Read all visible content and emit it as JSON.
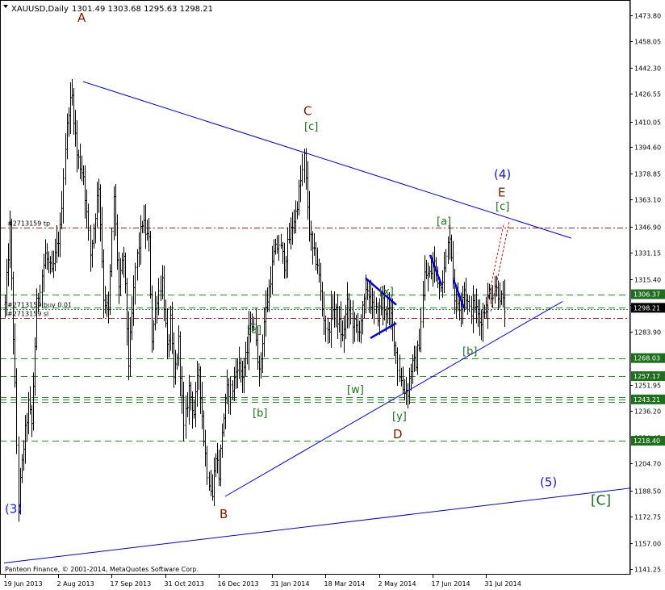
{
  "header": {
    "symbol": "XAUUSD,Daily",
    "ohlc": "1301.49 1303.68 1295.63 1298.21"
  },
  "copyright": "Panteon Finance, © 2001-2014, MetaQuotes Software Corp.",
  "colors": {
    "background": "#ffffff",
    "bars": "#000000",
    "trendline": "#0000cc",
    "wave_brown": "#7a1a00",
    "wave_green": "#1e6e1e",
    "wave_blue": "#1a1acc",
    "level_green": "#2e8b2e",
    "level_red": "#b22222",
    "tag_bg": "#1e6e1e",
    "price_tag_bg": "#000000"
  },
  "chart_data": {
    "type": "ohlc",
    "symbol": "XAUUSD",
    "timeframe": "Daily",
    "ylim": [
      1138,
      1483
    ],
    "y_ticks": [
      1473.8,
      1458.05,
      1442.3,
      1426.55,
      1410.05,
      1394.6,
      1378.85,
      1363.1,
      1346.9,
      1331.15,
      1315.4,
      1299.65,
      1283.9,
      1268.15,
      1251.95,
      1236.2,
      1220.45,
      1204.7,
      1188.5,
      1172.75,
      1157.0,
      1141.25
    ],
    "x_ticks": [
      "19 Jun 2013",
      "2 Aug 2013",
      "17 Sep 2013",
      "31 Oct 2013",
      "16 Dec 2013",
      "31 Jan 2014",
      "18 Mar 2014",
      "2 May 2014",
      "17 Jun 2014",
      "31 Jul 2014"
    ],
    "x_ticks_bar_index": [
      0,
      32,
      64,
      96,
      128,
      160,
      192,
      224,
      256,
      288
    ],
    "bars_count": 300,
    "waypoints": [
      [
        0,
        1300
      ],
      [
        3,
        1345
      ],
      [
        6,
        1250
      ],
      [
        8,
        1182
      ],
      [
        11,
        1215
      ],
      [
        14,
        1240
      ],
      [
        16,
        1228
      ],
      [
        19,
        1300
      ],
      [
        24,
        1330
      ],
      [
        28,
        1318
      ],
      [
        33,
        1345
      ],
      [
        36,
        1395
      ],
      [
        38,
        1418
      ],
      [
        40,
        1425
      ],
      [
        43,
        1390
      ],
      [
        47,
        1378
      ],
      [
        51,
        1330
      ],
      [
        56,
        1372
      ],
      [
        59,
        1305
      ],
      [
        62,
        1295
      ],
      [
        65,
        1365
      ],
      [
        68,
        1310
      ],
      [
        71,
        1330
      ],
      [
        74,
        1265
      ],
      [
        78,
        1322
      ],
      [
        82,
        1350
      ],
      [
        86,
        1338
      ],
      [
        88,
        1280
      ],
      [
        91,
        1305
      ],
      [
        94,
        1315
      ],
      [
        97,
        1272
      ],
      [
        99,
        1290
      ],
      [
        101,
        1255
      ],
      [
        104,
        1278
      ],
      [
        107,
        1225
      ],
      [
        110,
        1250
      ],
      [
        113,
        1235
      ],
      [
        116,
        1262
      ],
      [
        119,
        1220
      ],
      [
        121,
        1200
      ],
      [
        124,
        1185
      ],
      [
        126,
        1212
      ],
      [
        128,
        1198
      ],
      [
        130,
        1225
      ],
      [
        133,
        1248
      ],
      [
        136,
        1250
      ],
      [
        139,
        1265
      ],
      [
        142,
        1258
      ],
      [
        145,
        1272
      ],
      [
        147,
        1292
      ],
      [
        150,
        1282
      ],
      [
        152,
        1258
      ],
      [
        155,
        1290
      ],
      [
        158,
        1310
      ],
      [
        161,
        1330
      ],
      [
        164,
        1337
      ],
      [
        167,
        1325
      ],
      [
        170,
        1340
      ],
      [
        172,
        1348
      ],
      [
        174,
        1355
      ],
      [
        176,
        1368
      ],
      [
        178,
        1380
      ],
      [
        179,
        1388
      ],
      [
        182,
        1345
      ],
      [
        184,
        1332
      ],
      [
        187,
        1325
      ],
      [
        190,
        1298
      ],
      [
        193,
        1282
      ],
      [
        196,
        1300
      ],
      [
        199,
        1292
      ],
      [
        202,
        1280
      ],
      [
        205,
        1300
      ],
      [
        208,
        1290
      ],
      [
        211,
        1283
      ],
      [
        214,
        1296
      ],
      [
        217,
        1310
      ],
      [
        220,
        1298
      ],
      [
        223,
        1294
      ],
      [
        226,
        1302
      ],
      [
        228,
        1297
      ],
      [
        231,
        1293
      ],
      [
        233,
        1280
      ],
      [
        235,
        1263
      ],
      [
        238,
        1250
      ],
      [
        241,
        1248
      ],
      [
        243,
        1262
      ],
      [
        246,
        1266
      ],
      [
        248,
        1278
      ],
      [
        251,
        1318
      ],
      [
        254,
        1318
      ],
      [
        257,
        1325
      ],
      [
        260,
        1312
      ],
      [
        263,
        1320
      ],
      [
        266,
        1343
      ],
      [
        269,
        1305
      ],
      [
        272,
        1300
      ],
      [
        275,
        1310
      ],
      [
        278,
        1296
      ],
      [
        281,
        1300
      ],
      [
        284,
        1290
      ],
      [
        287,
        1297
      ],
      [
        290,
        1306
      ],
      [
        293,
        1310
      ],
      [
        296,
        1306
      ],
      [
        299,
        1298
      ]
    ],
    "horizontal_levels": [
      {
        "price": 1346.5,
        "style": "dash-dot",
        "color": "red",
        "label": "#2713159 tp"
      },
      {
        "price": 1306.37,
        "style": "dashed",
        "color": "green",
        "price_tag": "1306.37"
      },
      {
        "price": 1298.21,
        "style": "dashed",
        "color": "green",
        "price_tag": "1298.21",
        "tag_style": "current"
      },
      {
        "price": 1297.4,
        "style": "dotted",
        "color": "green",
        "label": "#2713159 buy 0.01"
      },
      {
        "price": 1292.0,
        "style": "dash-dot",
        "color": "red",
        "label": "#2713159 sl"
      },
      {
        "price": 1268.03,
        "style": "dashed",
        "color": "green",
        "price_tag": "1268.03"
      },
      {
        "price": 1257.17,
        "style": "dashed",
        "color": "green",
        "price_tag": "1257.17"
      },
      {
        "price": 1244.8,
        "style": "dashed",
        "color": "green"
      },
      {
        "price": 1243.21,
        "style": "dashed",
        "color": "green",
        "price_tag": "1243.21"
      },
      {
        "price": 1241.6,
        "style": "dashed",
        "color": "green"
      },
      {
        "price": 1218.4,
        "style": "dashed",
        "color": "green",
        "price_tag": "1218.40"
      }
    ],
    "trendlines": [
      {
        "from": [
          103,
          1434
        ],
        "to": [
          708,
          1340
        ],
        "width": 1
      },
      {
        "from": [
          279,
          1185
        ],
        "to": [
          697,
          1302
        ],
        "width": 1
      },
      {
        "from": [
          5,
          1145
        ],
        "to": [
          782,
          1190
        ],
        "width": 1
      },
      {
        "from": [
          453,
          1316
        ],
        "to": [
          491,
          1300
        ],
        "width": 2.5
      },
      {
        "from": [
          459,
          1280
        ],
        "to": [
          491,
          1289
        ],
        "width": 2.5
      },
      {
        "from": [
          533,
          1330
        ],
        "to": [
          547,
          1312
        ],
        "width": 2.5
      },
      {
        "from": [
          562,
          1315
        ],
        "to": [
          575,
          1298
        ],
        "width": 2.5
      }
    ],
    "projection": [
      {
        "from": [
          603,
          1299
        ],
        "to": [
          624,
          1348
        ]
      },
      {
        "from": [
          608,
          1296
        ],
        "to": [
          631,
          1350
        ]
      }
    ],
    "wave_labels": [
      {
        "text": "A",
        "at": [
          96,
          1470
        ],
        "color": "brown"
      },
      {
        "text": "C",
        "at": [
          376,
          1414
        ],
        "color": "brown"
      },
      {
        "text": "[c]",
        "at": [
          377,
          1405
        ],
        "color": "green"
      },
      {
        "text": "(4)",
        "at": [
          612,
          1376
        ],
        "color": "blue"
      },
      {
        "text": "E",
        "at": [
          617,
          1365
        ],
        "color": "brown"
      },
      {
        "text": "[c]",
        "at": [
          614,
          1357
        ],
        "color": "green"
      },
      {
        "text": "[a]",
        "at": [
          541,
          1348
        ],
        "color": "green"
      },
      {
        "text": "[x]",
        "at": [
          470,
          1306
        ],
        "color": "green"
      },
      {
        "text": "[a]",
        "at": [
          306,
          1283
        ],
        "color": "green"
      },
      {
        "text": "[b]",
        "at": [
          573,
          1270
        ],
        "color": "green"
      },
      {
        "text": "[w]",
        "at": [
          430,
          1247
        ],
        "color": "green"
      },
      {
        "text": "[b]",
        "at": [
          313,
          1233
        ],
        "color": "green"
      },
      {
        "text": "[y]",
        "at": [
          486,
          1231
        ],
        "color": "green"
      },
      {
        "text": "D",
        "at": [
          487,
          1220
        ],
        "color": "brown"
      },
      {
        "text": "(5)",
        "at": [
          669,
          1191
        ],
        "color": "blue"
      },
      {
        "text": "[C]",
        "at": [
          732,
          1180
        ],
        "color": "green"
      },
      {
        "text": "(3)",
        "at": [
          6,
          1175
        ],
        "color": "blue"
      },
      {
        "text": "B",
        "at": [
          272,
          1172
        ],
        "color": "brown"
      }
    ]
  }
}
